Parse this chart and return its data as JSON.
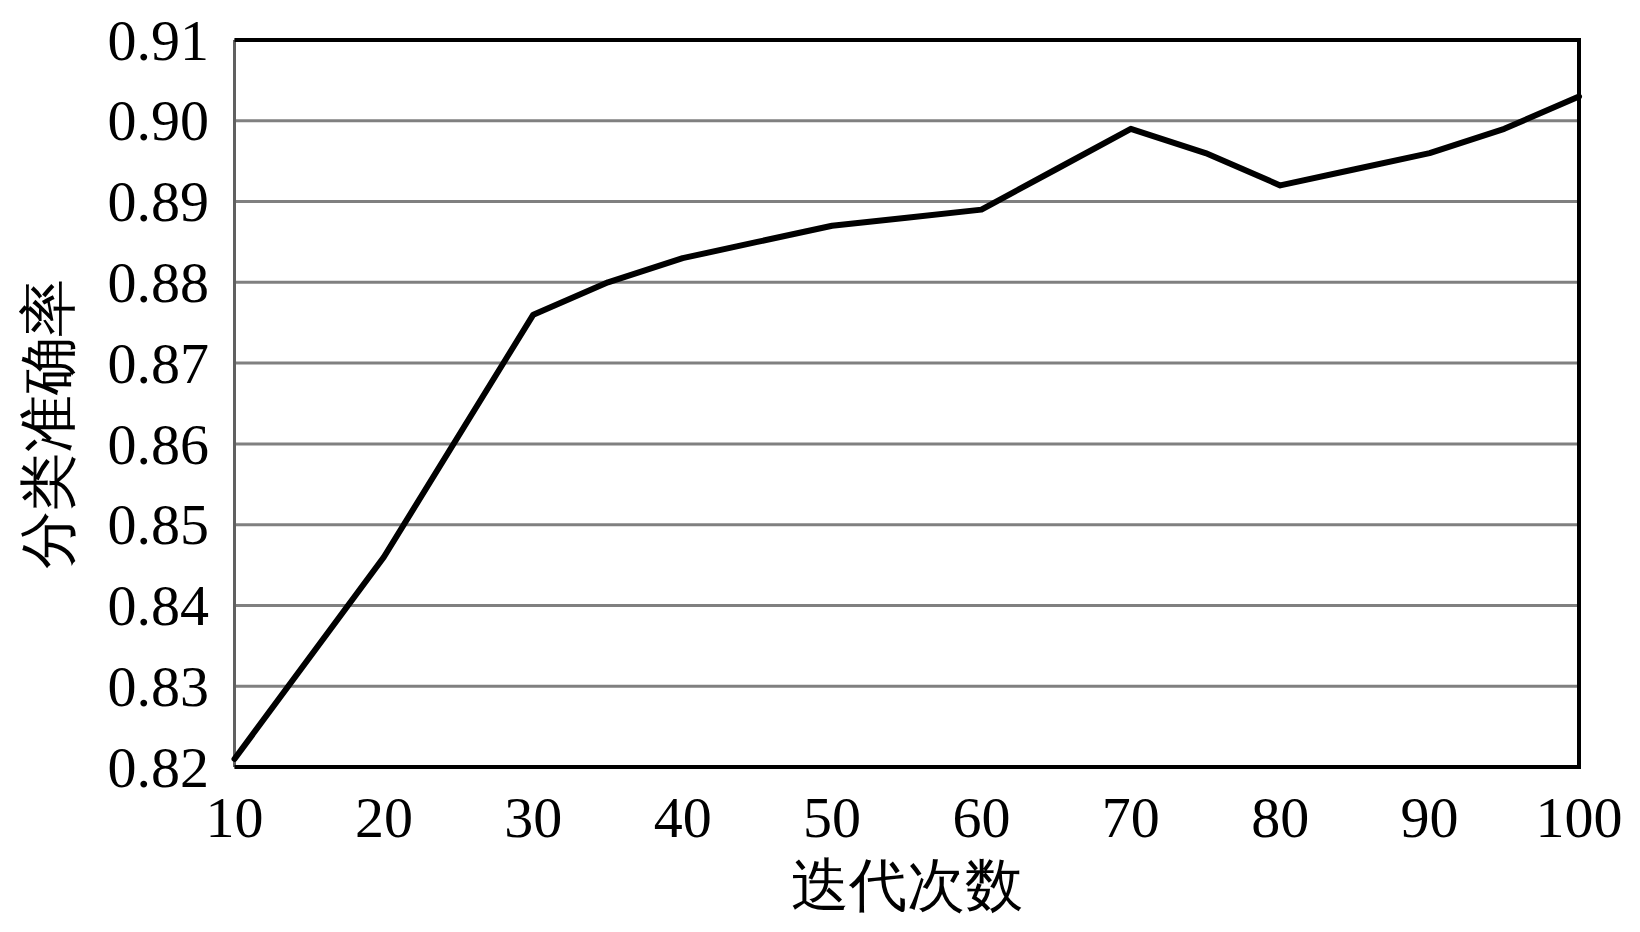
{
  "chart_data": {
    "type": "line",
    "xlabel": "迭代次数",
    "ylabel": "分类准确率",
    "x": [
      10,
      20,
      30,
      35,
      40,
      45,
      50,
      55,
      60,
      65,
      70,
      75,
      80,
      85,
      90,
      95,
      100
    ],
    "values": [
      0.821,
      0.846,
      0.876,
      0.88,
      0.883,
      0.885,
      0.887,
      0.888,
      0.889,
      0.894,
      0.899,
      0.896,
      0.892,
      0.894,
      0.896,
      0.899,
      0.903
    ],
    "color": "#000000",
    "line_style": "solid",
    "xlim": [
      10,
      100
    ],
    "xticks": [
      10,
      20,
      30,
      40,
      50,
      60,
      70,
      80,
      90,
      100
    ],
    "ylim": [
      0.82,
      0.91
    ],
    "yticks": [
      0.82,
      0.83,
      0.84,
      0.85,
      0.86,
      0.87,
      0.88,
      0.89,
      {
        "value": 0.9,
        "label": "0.90"
      },
      0.91
    ],
    "grid": "y"
  }
}
